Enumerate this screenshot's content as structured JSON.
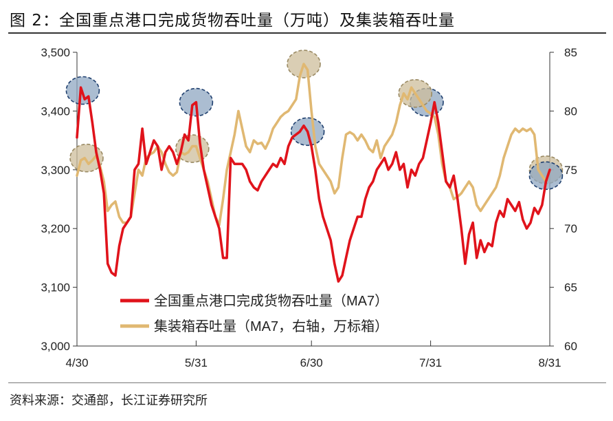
{
  "title": "图 2：全国重点港口完成货物吞吐量（万吨）及集装箱吞吐量",
  "source": "资料来源：交通部，长江证券研究所",
  "chart_data": {
    "type": "line",
    "x_tick_labels": [
      "4/30",
      "5/31",
      "6/30",
      "7/31",
      "8/31"
    ],
    "x_tick_positions": [
      0,
      31,
      61,
      92,
      123
    ],
    "left_axis": {
      "ylim": [
        3000,
        3500
      ],
      "tick_values": [
        3000,
        3100,
        3200,
        3300,
        3400,
        3500
      ],
      "tick_labels": [
        "3,000",
        "3,100",
        "3,200",
        "3,300",
        "3,400",
        "3,500"
      ]
    },
    "right_axis": {
      "ylim": [
        60,
        85
      ],
      "tick_values": [
        60,
        65,
        70,
        75,
        80,
        85
      ],
      "tick_labels": [
        "60",
        "65",
        "70",
        "75",
        "80",
        "85"
      ]
    },
    "legend_position": "lower-center",
    "series": [
      {
        "name": "全国重点港口完成货物吞吐量（MA7）",
        "axis": "left",
        "color": "#e0131b",
        "points": [
          [
            0,
            3355
          ],
          [
            1,
            3440
          ],
          [
            2,
            3420
          ],
          [
            3,
            3425
          ],
          [
            4,
            3380
          ],
          [
            5,
            3330
          ],
          [
            6,
            3300
          ],
          [
            7,
            3260
          ],
          [
            8,
            3140
          ],
          [
            9,
            3125
          ],
          [
            10,
            3120
          ],
          [
            11,
            3170
          ],
          [
            12,
            3200
          ],
          [
            13,
            3210
          ],
          [
            14,
            3220
          ],
          [
            15,
            3300
          ],
          [
            16,
            3310
          ],
          [
            17,
            3370
          ],
          [
            18,
            3310
          ],
          [
            19,
            3330
          ],
          [
            20,
            3350
          ],
          [
            21,
            3340
          ],
          [
            22,
            3300
          ],
          [
            23,
            3330
          ],
          [
            24,
            3340
          ],
          [
            25,
            3330
          ],
          [
            26,
            3310
          ],
          [
            27,
            3330
          ],
          [
            28,
            3360
          ],
          [
            29,
            3350
          ],
          [
            30,
            3410
          ],
          [
            31,
            3415
          ],
          [
            32,
            3345
          ],
          [
            33,
            3300
          ],
          [
            34,
            3270
          ],
          [
            35,
            3240
          ],
          [
            36,
            3220
          ],
          [
            37,
            3200
          ],
          [
            38,
            3150
          ],
          [
            39,
            3150
          ],
          [
            40,
            3320
          ],
          [
            41,
            3310
          ],
          [
            42,
            3310
          ],
          [
            43,
            3310
          ],
          [
            44,
            3300
          ],
          [
            45,
            3280
          ],
          [
            46,
            3270
          ],
          [
            47,
            3265
          ],
          [
            48,
            3280
          ],
          [
            49,
            3290
          ],
          [
            50,
            3300
          ],
          [
            51,
            3310
          ],
          [
            52,
            3305
          ],
          [
            53,
            3320
          ],
          [
            54,
            3310
          ],
          [
            55,
            3340
          ],
          [
            56,
            3355
          ],
          [
            57,
            3360
          ],
          [
            58,
            3365
          ],
          [
            59,
            3375
          ],
          [
            60,
            3365
          ],
          [
            61,
            3340
          ],
          [
            62,
            3300
          ],
          [
            63,
            3250
          ],
          [
            64,
            3220
          ],
          [
            65,
            3200
          ],
          [
            66,
            3180
          ],
          [
            67,
            3140
          ],
          [
            68,
            3110
          ],
          [
            69,
            3120
          ],
          [
            70,
            3150
          ],
          [
            71,
            3180
          ],
          [
            72,
            3200
          ],
          [
            73,
            3220
          ],
          [
            74,
            3220
          ],
          [
            75,
            3250
          ],
          [
            76,
            3270
          ],
          [
            77,
            3280
          ],
          [
            78,
            3300
          ],
          [
            79,
            3310
          ],
          [
            80,
            3320
          ],
          [
            81,
            3300
          ],
          [
            82,
            3310
          ],
          [
            83,
            3330
          ],
          [
            84,
            3300
          ],
          [
            85,
            3310
          ],
          [
            86,
            3270
          ],
          [
            87,
            3300
          ],
          [
            88,
            3290
          ],
          [
            89,
            3310
          ],
          [
            90,
            3320
          ],
          [
            91,
            3350
          ],
          [
            92,
            3380
          ],
          [
            93,
            3415
          ],
          [
            94,
            3380
          ],
          [
            95,
            3330
          ],
          [
            96,
            3280
          ],
          [
            97,
            3270
          ],
          [
            98,
            3290
          ],
          [
            99,
            3250
          ],
          [
            100,
            3200
          ],
          [
            101,
            3140
          ],
          [
            102,
            3190
          ],
          [
            103,
            3210
          ],
          [
            104,
            3150
          ],
          [
            105,
            3180
          ],
          [
            106,
            3160
          ],
          [
            107,
            3175
          ],
          [
            108,
            3170
          ],
          [
            109,
            3210
          ],
          [
            110,
            3230
          ],
          [
            111,
            3220
          ],
          [
            112,
            3250
          ],
          [
            113,
            3240
          ],
          [
            114,
            3230
          ],
          [
            115,
            3245
          ],
          [
            116,
            3215
          ],
          [
            117,
            3200
          ],
          [
            118,
            3210
          ],
          [
            119,
            3235
          ],
          [
            120,
            3225
          ],
          [
            121,
            3240
          ],
          [
            122,
            3280
          ],
          [
            123,
            3300
          ]
        ]
      },
      {
        "name": "集装箱吞吐量（MA7，右轴，万标箱）",
        "axis": "right",
        "color": "#e0b872",
        "points": [
          [
            0,
            74.5
          ],
          [
            1,
            75.8
          ],
          [
            2,
            76
          ],
          [
            3,
            75.5
          ],
          [
            4,
            75.8
          ],
          [
            5,
            76.2
          ],
          [
            6,
            75.3
          ],
          [
            7,
            74
          ],
          [
            8,
            71.5
          ],
          [
            9,
            72
          ],
          [
            10,
            72.3
          ],
          [
            11,
            71
          ],
          [
            12,
            70.5
          ],
          [
            13,
            70.5
          ],
          [
            14,
            71
          ],
          [
            15,
            73
          ],
          [
            16,
            75
          ],
          [
            17,
            74.5
          ],
          [
            18,
            76
          ],
          [
            19,
            76.3
          ],
          [
            20,
            76.5
          ],
          [
            21,
            77
          ],
          [
            22,
            76.5
          ],
          [
            23,
            75.5
          ],
          [
            24,
            74.8
          ],
          [
            25,
            74.5
          ],
          [
            26,
            74.8
          ],
          [
            27,
            76.5
          ],
          [
            28,
            76.3
          ],
          [
            29,
            76.5
          ],
          [
            30,
            77
          ],
          [
            31,
            77
          ],
          [
            32,
            76
          ],
          [
            33,
            75
          ],
          [
            34,
            74
          ],
          [
            35,
            72.5
          ],
          [
            36,
            71
          ],
          [
            37,
            70.3
          ],
          [
            38,
            72.5
          ],
          [
            39,
            75
          ],
          [
            40,
            76.5
          ],
          [
            41,
            78
          ],
          [
            42,
            80
          ],
          [
            43,
            78.5
          ],
          [
            44,
            77
          ],
          [
            45,
            76.5
          ],
          [
            46,
            77.5
          ],
          [
            47,
            77.2
          ],
          [
            48,
            77.3
          ],
          [
            49,
            76.8
          ],
          [
            50,
            77.5
          ],
          [
            51,
            78.5
          ],
          [
            52,
            79
          ],
          [
            53,
            79.5
          ],
          [
            54,
            79.8
          ],
          [
            55,
            80
          ],
          [
            56,
            80.5
          ],
          [
            57,
            81
          ],
          [
            58,
            83
          ],
          [
            59,
            84
          ],
          [
            60,
            83.5
          ],
          [
            61,
            80
          ],
          [
            62,
            77
          ],
          [
            63,
            75.5
          ],
          [
            64,
            75
          ],
          [
            65,
            74.5
          ],
          [
            66,
            74
          ],
          [
            67,
            73
          ],
          [
            68,
            73.5
          ],
          [
            69,
            76
          ],
          [
            70,
            78
          ],
          [
            71,
            78.2
          ],
          [
            72,
            78
          ],
          [
            73,
            77.5
          ],
          [
            74,
            78
          ],
          [
            75,
            77.5
          ],
          [
            76,
            76.8
          ],
          [
            77,
            76.5
          ],
          [
            78,
            77.5
          ],
          [
            79,
            76
          ],
          [
            80,
            77
          ],
          [
            81,
            77.5
          ],
          [
            82,
            78
          ],
          [
            83,
            79
          ],
          [
            84,
            80.5
          ],
          [
            85,
            81.5
          ],
          [
            86,
            81
          ],
          [
            87,
            82
          ],
          [
            88,
            81.5
          ],
          [
            89,
            81
          ],
          [
            90,
            80.5
          ],
          [
            91,
            80
          ],
          [
            92,
            79.8
          ],
          [
            93,
            79.5
          ],
          [
            94,
            78
          ],
          [
            95,
            75.5
          ],
          [
            96,
            74
          ],
          [
            97,
            73.5
          ],
          [
            98,
            72.5
          ],
          [
            99,
            72.7
          ],
          [
            100,
            73
          ],
          [
            101,
            73.5
          ],
          [
            102,
            74
          ],
          [
            103,
            73.5
          ],
          [
            104,
            72
          ],
          [
            105,
            71.5
          ],
          [
            106,
            72
          ],
          [
            107,
            72.5
          ],
          [
            108,
            73
          ],
          [
            109,
            73.5
          ],
          [
            110,
            74.5
          ],
          [
            111,
            76
          ],
          [
            112,
            77
          ],
          [
            113,
            78
          ],
          [
            114,
            78.5
          ],
          [
            115,
            78.2
          ],
          [
            116,
            78.5
          ],
          [
            117,
            78.3
          ],
          [
            118,
            78.5
          ],
          [
            119,
            78
          ],
          [
            120,
            75
          ],
          [
            121,
            74.5
          ],
          [
            122,
            74
          ],
          [
            123,
            75
          ]
        ]
      }
    ],
    "highlights": [
      {
        "series": 0,
        "x": 1.5,
        "y": 3435,
        "style": "blue"
      },
      {
        "series": 0,
        "x": 31,
        "y": 3415,
        "style": "blue"
      },
      {
        "series": 0,
        "x": 60,
        "y": 3365,
        "style": "blue"
      },
      {
        "series": 0,
        "x": 91,
        "y": 3415,
        "style": "blue"
      },
      {
        "series": 1,
        "x": 2.5,
        "y": 76,
        "style": "tan"
      },
      {
        "series": 1,
        "x": 30,
        "y": 76.8,
        "style": "tan"
      },
      {
        "series": 1,
        "x": 59,
        "y": 84,
        "style": "tan"
      },
      {
        "series": 1,
        "x": 88,
        "y": 81.5,
        "style": "tan"
      },
      {
        "series": 1,
        "x": 122,
        "y": 75,
        "style": "tan"
      },
      {
        "series": 0,
        "x": 122,
        "y": 3290,
        "style": "blue"
      }
    ],
    "colors": {
      "highlight_blue": "#8fa7c2",
      "highlight_tan": "#cdbd9b",
      "axis": "#333333"
    }
  }
}
